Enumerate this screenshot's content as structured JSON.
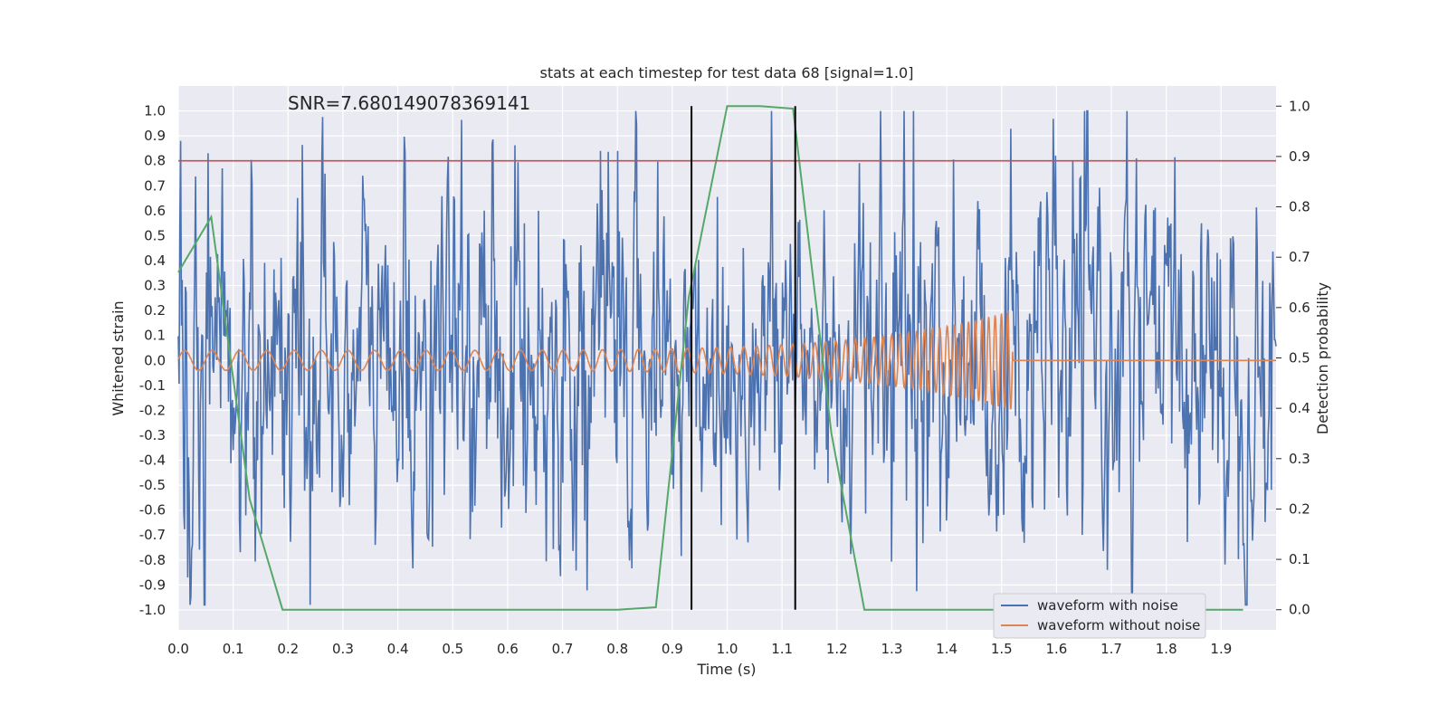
{
  "chart_data": {
    "type": "line",
    "title": "stats at each timestep for test data 68 [signal=1.0]",
    "xlabel": "Time (s)",
    "ylabel_left": "Whitened strain",
    "ylabel_right": "Detection probability",
    "annotation": "SNR=7.680149078369141",
    "xlim": [
      0.0,
      2.0
    ],
    "ylim_left": [
      -1.08,
      1.1
    ],
    "ylim_right": [
      -0.04,
      1.04
    ],
    "x_ticks": [
      "0.0",
      "0.1",
      "0.2",
      "0.3",
      "0.4",
      "0.5",
      "0.6",
      "0.7",
      "0.8",
      "0.9",
      "1.0",
      "1.1",
      "1.2",
      "1.3",
      "1.4",
      "1.5",
      "1.6",
      "1.7",
      "1.8",
      "1.9"
    ],
    "y_left_ticks": [
      "1.0",
      "0.9",
      "0.8",
      "0.7",
      "0.6",
      "0.5",
      "0.4",
      "0.3",
      "0.2",
      "0.1",
      "0.0",
      "-0.1",
      "-0.2",
      "-0.3",
      "-0.4",
      "-0.5",
      "-0.6",
      "-0.7",
      "-0.8",
      "-0.9",
      "-1.0"
    ],
    "y_right_ticks": [
      "1.0",
      "0.9",
      "0.8",
      "0.7",
      "0.6",
      "0.5",
      "0.4",
      "0.3",
      "0.2",
      "0.1",
      "0.0"
    ],
    "grid": true,
    "legend_position": "bottom-right",
    "series": [
      {
        "name": "waveform with noise",
        "color": "#4c72b0",
        "kind": "noisy-strain",
        "amplitude_range": [
          -0.98,
          1.0
        ],
        "notable_peaks": [
          {
            "x": 0.055,
            "y": 0.83
          },
          {
            "x": 0.08,
            "y": 0.77
          },
          {
            "x": 0.8,
            "y": 0.84
          },
          {
            "x": 1.34,
            "y": 1.0
          },
          {
            "x": 0.24,
            "y": -0.98
          },
          {
            "x": 0.017,
            "y": -0.87
          }
        ]
      },
      {
        "name": "waveform without noise",
        "color": "#dd8452",
        "kind": "chirp",
        "t_end": 1.52,
        "amplitude_start": 0.04,
        "amplitude_peak": 0.2
      },
      {
        "color": "#55a868",
        "axis": "right",
        "x": [
          0.0,
          0.06,
          0.13,
          0.19,
          0.25,
          0.8,
          0.87,
          0.93,
          1.0,
          1.06,
          1.12,
          1.19,
          1.25,
          1.31,
          1.94
        ],
        "values": [
          0.67,
          0.78,
          0.22,
          0.0,
          0.0,
          0.0,
          0.005,
          0.62,
          1.0,
          1.0,
          0.995,
          0.35,
          0.0,
          0.0,
          0.0
        ]
      }
    ],
    "threshold": {
      "axis": "left",
      "y": 0.8,
      "color": "#c44e52"
    },
    "vertical_markers": {
      "x": [
        0.935,
        1.124
      ],
      "y_range_right": [
        0.0,
        1.0
      ],
      "color": "#000000"
    }
  }
}
